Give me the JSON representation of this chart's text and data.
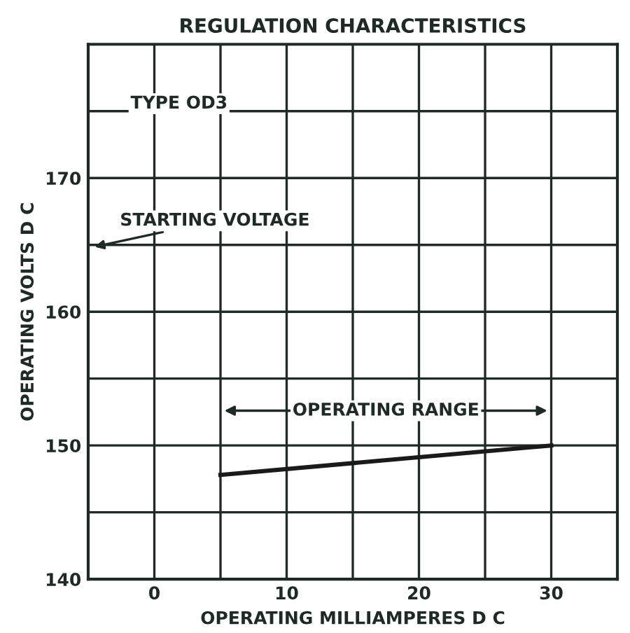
{
  "chart_data": {
    "type": "line",
    "title": "REGULATION CHARACTERISTICS",
    "xlabel": "OPERATING MILLIAMPERES D C",
    "ylabel": "OPERATING VOLTS D C",
    "x": [
      5,
      30
    ],
    "series": [
      {
        "color": "#1a1a1a",
        "values": [
          147.8,
          150
        ]
      }
    ],
    "xlim": [
      -5,
      35
    ],
    "xticks": [
      {
        "value": -5,
        "label": null
      },
      0,
      {
        "value": 5,
        "label": null
      },
      10,
      {
        "value": 15,
        "label": null
      },
      20,
      {
        "value": 25,
        "label": null
      },
      30,
      {
        "value": 35,
        "label": null
      }
    ],
    "ylim": [
      140,
      180
    ],
    "yticks": [
      140,
      {
        "value": 145,
        "label": null
      },
      150,
      {
        "value": 155,
        "label": null
      },
      160,
      {
        "value": 165,
        "label": null
      },
      170,
      {
        "value": 175,
        "label": null
      },
      {
        "value": 180,
        "label": null
      }
    ],
    "grid": true,
    "marker": "none",
    "line_style": "solid",
    "annotations": [
      "TYPE OD3",
      "STARTING VOLTAGE",
      "OPERATING RANGE"
    ]
  }
}
